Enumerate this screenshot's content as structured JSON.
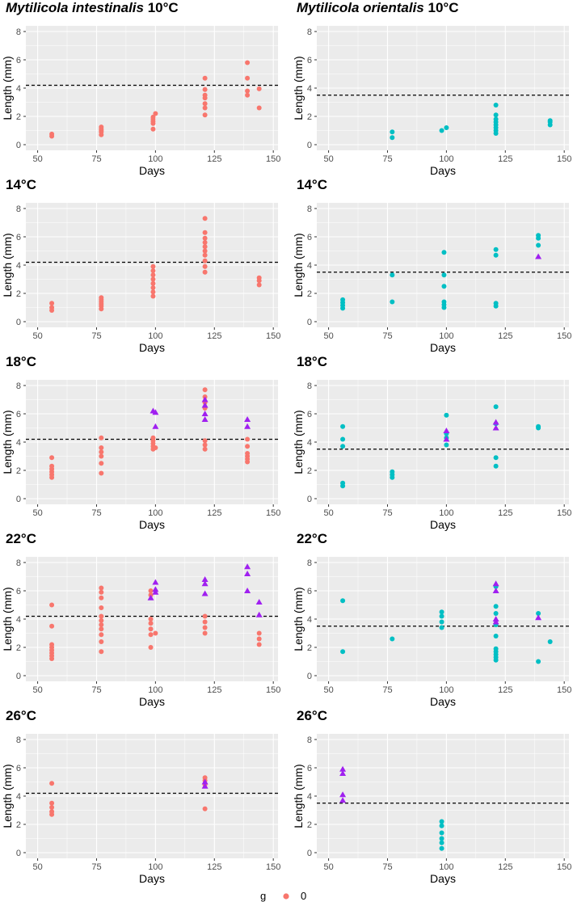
{
  "colors": {
    "panel_bg": "#ebebeb",
    "grid_major": "#ffffff",
    "intestinalis": "#f8766d",
    "orientalis": "#00bfc4",
    "gravid": "#a020f0",
    "threshold": "#000000"
  },
  "legend": {
    "title": "g",
    "label": "0"
  },
  "chart_data": [
    {
      "type": "scatter",
      "title_species": "Mytilicola intestinalis",
      "title_temp": "10°C",
      "species": "intestinalis",
      "xlabel": "Days",
      "ylabel": "Length (mm)",
      "xlim": [
        45,
        152
      ],
      "ylim": [
        -0.4,
        8.4
      ],
      "xticks": [
        50,
        75,
        100,
        125,
        150
      ],
      "yticks": [
        0,
        2,
        4,
        6,
        8
      ],
      "threshold": 4.2,
      "circles": [
        [
          56,
          0.6
        ],
        [
          56,
          0.75
        ],
        [
          77,
          0.7
        ],
        [
          77,
          0.9
        ],
        [
          77,
          1.0
        ],
        [
          77,
          1.1
        ],
        [
          77,
          1.25
        ],
        [
          99,
          1.1
        ],
        [
          99,
          1.5
        ],
        [
          99,
          1.65
        ],
        [
          99,
          1.8
        ],
        [
          99,
          1.95
        ],
        [
          100,
          2.2
        ],
        [
          121,
          2.1
        ],
        [
          121,
          2.6
        ],
        [
          121,
          2.9
        ],
        [
          121,
          3.3
        ],
        [
          121,
          3.5
        ],
        [
          121,
          3.9
        ],
        [
          121,
          4.7
        ],
        [
          139,
          3.5
        ],
        [
          139,
          3.8
        ],
        [
          139,
          4.7
        ],
        [
          139,
          5.8
        ],
        [
          144,
          2.6
        ],
        [
          144,
          3.95
        ]
      ],
      "triangles": []
    },
    {
      "type": "scatter",
      "title_species": "Mytilicola orientalis",
      "title_temp": "10°C",
      "species": "orientalis",
      "xlabel": "Days",
      "ylabel": "Length (mm)",
      "xlim": [
        45,
        152
      ],
      "ylim": [
        -0.4,
        8.4
      ],
      "xticks": [
        50,
        75,
        100,
        125,
        150
      ],
      "yticks": [
        0,
        2,
        4,
        6,
        8
      ],
      "threshold": 3.5,
      "circles": [
        [
          77,
          0.5
        ],
        [
          77,
          0.9
        ],
        [
          98,
          1.0
        ],
        [
          100,
          1.2
        ],
        [
          121,
          0.8
        ],
        [
          121,
          1.0
        ],
        [
          121,
          1.2
        ],
        [
          121,
          1.4
        ],
        [
          121,
          1.6
        ],
        [
          121,
          1.8
        ],
        [
          121,
          2.1
        ],
        [
          121,
          2.8
        ],
        [
          144,
          1.4
        ],
        [
          144,
          1.6
        ],
        [
          144,
          1.7
        ]
      ],
      "triangles": []
    },
    {
      "type": "scatter",
      "title_species": "",
      "title_temp": "14°C",
      "species": "intestinalis",
      "xlabel": "Days",
      "ylabel": "Length (mm)",
      "xlim": [
        45,
        152
      ],
      "ylim": [
        -0.4,
        8.4
      ],
      "xticks": [
        50,
        75,
        100,
        125,
        150
      ],
      "yticks": [
        0,
        2,
        4,
        6,
        8
      ],
      "threshold": 4.2,
      "circles": [
        [
          56,
          0.8
        ],
        [
          56,
          1.0
        ],
        [
          56,
          1.3
        ],
        [
          77,
          0.9
        ],
        [
          77,
          1.1
        ],
        [
          77,
          1.25
        ],
        [
          77,
          1.4
        ],
        [
          77,
          1.55
        ],
        [
          77,
          1.7
        ],
        [
          99,
          1.8
        ],
        [
          99,
          2.1
        ],
        [
          99,
          2.4
        ],
        [
          99,
          2.7
        ],
        [
          99,
          3.0
        ],
        [
          99,
          3.3
        ],
        [
          99,
          3.6
        ],
        [
          99,
          3.9
        ],
        [
          121,
          3.5
        ],
        [
          121,
          3.9
        ],
        [
          121,
          4.3
        ],
        [
          121,
          4.7
        ],
        [
          121,
          5.0
        ],
        [
          121,
          5.3
        ],
        [
          121,
          5.6
        ],
        [
          121,
          5.9
        ],
        [
          121,
          6.3
        ],
        [
          121,
          7.3
        ],
        [
          144,
          2.6
        ],
        [
          144,
          2.9
        ],
        [
          144,
          3.1
        ]
      ],
      "triangles": []
    },
    {
      "type": "scatter",
      "title_species": "",
      "title_temp": "14°C",
      "species": "orientalis",
      "xlabel": "Days",
      "ylabel": "Length (mm)",
      "xlim": [
        45,
        152
      ],
      "ylim": [
        -0.4,
        8.4
      ],
      "xticks": [
        50,
        75,
        100,
        125,
        150
      ],
      "yticks": [
        0,
        2,
        4,
        6,
        8
      ],
      "threshold": 3.5,
      "circles": [
        [
          56,
          0.95
        ],
        [
          56,
          1.15
        ],
        [
          56,
          1.35
        ],
        [
          56,
          1.55
        ],
        [
          77,
          1.4
        ],
        [
          77,
          3.3
        ],
        [
          99,
          1.0
        ],
        [
          99,
          1.2
        ],
        [
          99,
          1.4
        ],
        [
          99,
          2.5
        ],
        [
          99,
          3.3
        ],
        [
          99,
          4.9
        ],
        [
          121,
          1.1
        ],
        [
          121,
          1.3
        ],
        [
          121,
          4.7
        ],
        [
          121,
          5.1
        ],
        [
          139,
          5.4
        ],
        [
          139,
          5.9
        ],
        [
          139,
          6.1
        ]
      ],
      "triangles": [
        [
          139,
          4.6
        ]
      ]
    },
    {
      "type": "scatter",
      "title_species": "",
      "title_temp": "18°C",
      "species": "intestinalis",
      "xlabel": "Days",
      "ylabel": "Length (mm)",
      "xlim": [
        45,
        152
      ],
      "ylim": [
        -0.4,
        8.4
      ],
      "xticks": [
        50,
        75,
        100,
        125,
        150
      ],
      "yticks": [
        0,
        2,
        4,
        6,
        8
      ],
      "threshold": 4.2,
      "circles": [
        [
          56,
          1.5
        ],
        [
          56,
          1.7
        ],
        [
          56,
          1.9
        ],
        [
          56,
          2.1
        ],
        [
          56,
          2.3
        ],
        [
          56,
          2.9
        ],
        [
          77,
          1.8
        ],
        [
          77,
          2.5
        ],
        [
          77,
          3.0
        ],
        [
          77,
          3.3
        ],
        [
          77,
          3.6
        ],
        [
          77,
          4.3
        ],
        [
          99,
          3.5
        ],
        [
          99,
          3.7
        ],
        [
          99,
          3.9
        ],
        [
          99,
          4.1
        ],
        [
          99,
          4.3
        ],
        [
          100,
          3.6
        ],
        [
          121,
          3.5
        ],
        [
          121,
          3.8
        ],
        [
          121,
          4.1
        ],
        [
          121,
          6.4
        ],
        [
          121,
          6.8
        ],
        [
          121,
          7.2
        ],
        [
          121,
          7.7
        ],
        [
          139,
          2.6
        ],
        [
          139,
          2.8
        ],
        [
          139,
          3.0
        ],
        [
          139,
          3.2
        ],
        [
          139,
          3.7
        ],
        [
          139,
          4.2
        ]
      ],
      "triangles": [
        [
          99,
          6.2
        ],
        [
          100,
          5.1
        ],
        [
          100,
          6.1
        ],
        [
          121,
          5.6
        ],
        [
          121,
          6.0
        ],
        [
          121,
          6.6
        ],
        [
          121,
          7.0
        ],
        [
          139,
          5.1
        ],
        [
          139,
          5.6
        ]
      ]
    },
    {
      "type": "scatter",
      "title_species": "",
      "title_temp": "18°C",
      "species": "orientalis",
      "xlabel": "Days",
      "ylabel": "Length (mm)",
      "xlim": [
        45,
        152
      ],
      "ylim": [
        -0.4,
        8.4
      ],
      "xticks": [
        50,
        75,
        100,
        125,
        150
      ],
      "yticks": [
        0,
        2,
        4,
        6,
        8
      ],
      "threshold": 3.5,
      "circles": [
        [
          56,
          0.9
        ],
        [
          56,
          1.1
        ],
        [
          56,
          3.7
        ],
        [
          56,
          4.2
        ],
        [
          56,
          5.1
        ],
        [
          77,
          1.5
        ],
        [
          77,
          1.7
        ],
        [
          77,
          1.9
        ],
        [
          100,
          3.8
        ],
        [
          100,
          4.3
        ],
        [
          100,
          4.6
        ],
        [
          100,
          5.9
        ],
        [
          121,
          2.3
        ],
        [
          121,
          2.9
        ],
        [
          121,
          5.3
        ],
        [
          121,
          6.5
        ],
        [
          139,
          5.0
        ],
        [
          139,
          5.1
        ]
      ],
      "triangles": [
        [
          100,
          4.2
        ],
        [
          100,
          4.8
        ],
        [
          121,
          5.0
        ],
        [
          121,
          5.4
        ]
      ]
    },
    {
      "type": "scatter",
      "title_species": "",
      "title_temp": "22°C",
      "species": "intestinalis",
      "xlabel": "Days",
      "ylabel": "Length (mm)",
      "xlim": [
        45,
        152
      ],
      "ylim": [
        -0.4,
        8.4
      ],
      "xticks": [
        50,
        75,
        100,
        125,
        150
      ],
      "yticks": [
        0,
        2,
        4,
        6,
        8
      ],
      "threshold": 4.2,
      "circles": [
        [
          56,
          1.2
        ],
        [
          56,
          1.4
        ],
        [
          56,
          1.6
        ],
        [
          56,
          1.8
        ],
        [
          56,
          2.0
        ],
        [
          56,
          2.2
        ],
        [
          56,
          3.5
        ],
        [
          56,
          5.0
        ],
        [
          77,
          1.7
        ],
        [
          77,
          2.4
        ],
        [
          77,
          2.9
        ],
        [
          77,
          3.3
        ],
        [
          77,
          3.6
        ],
        [
          77,
          3.9
        ],
        [
          77,
          4.2
        ],
        [
          77,
          4.8
        ],
        [
          77,
          5.5
        ],
        [
          77,
          5.9
        ],
        [
          77,
          6.2
        ],
        [
          98,
          2.0
        ],
        [
          98,
          2.9
        ],
        [
          98,
          3.3
        ],
        [
          98,
          3.7
        ],
        [
          98,
          4.0
        ],
        [
          98,
          5.7
        ],
        [
          98,
          6.0
        ],
        [
          100,
          3.0
        ],
        [
          121,
          3.0
        ],
        [
          121,
          3.4
        ],
        [
          121,
          3.8
        ],
        [
          121,
          4.2
        ],
        [
          144,
          2.2
        ],
        [
          144,
          2.6
        ],
        [
          144,
          3.0
        ]
      ],
      "triangles": [
        [
          98,
          5.5
        ],
        [
          100,
          5.9
        ],
        [
          100,
          6.1
        ],
        [
          100,
          6.6
        ],
        [
          121,
          5.8
        ],
        [
          121,
          6.5
        ],
        [
          121,
          6.8
        ],
        [
          139,
          6.0
        ],
        [
          139,
          7.2
        ],
        [
          139,
          7.7
        ],
        [
          144,
          4.3
        ],
        [
          144,
          5.2
        ]
      ]
    },
    {
      "type": "scatter",
      "title_species": "",
      "title_temp": "22°C",
      "species": "orientalis",
      "xlabel": "Days",
      "ylabel": "Length (mm)",
      "xlim": [
        45,
        152
      ],
      "ylim": [
        -0.4,
        8.4
      ],
      "xticks": [
        50,
        75,
        100,
        125,
        150
      ],
      "yticks": [
        0,
        2,
        4,
        6,
        8
      ],
      "threshold": 3.5,
      "circles": [
        [
          56,
          1.7
        ],
        [
          56,
          5.3
        ],
        [
          77,
          2.6
        ],
        [
          98,
          3.4
        ],
        [
          98,
          3.8
        ],
        [
          98,
          4.2
        ],
        [
          98,
          4.5
        ],
        [
          121,
          1.1
        ],
        [
          121,
          1.3
        ],
        [
          121,
          1.5
        ],
        [
          121,
          1.7
        ],
        [
          121,
          1.9
        ],
        [
          121,
          2.8
        ],
        [
          121,
          3.6
        ],
        [
          121,
          4.4
        ],
        [
          121,
          4.9
        ],
        [
          121,
          6.3
        ],
        [
          139,
          1.0
        ],
        [
          139,
          4.4
        ],
        [
          144,
          2.4
        ]
      ],
      "triangles": [
        [
          121,
          3.8
        ],
        [
          121,
          4.0
        ],
        [
          121,
          6.0
        ],
        [
          121,
          6.5
        ],
        [
          139,
          4.1
        ]
      ]
    },
    {
      "type": "scatter",
      "title_species": "",
      "title_temp": "26°C",
      "species": "intestinalis",
      "xlabel": "Days",
      "ylabel": "Length (mm)",
      "xlim": [
        45,
        152
      ],
      "ylim": [
        -0.4,
        8.4
      ],
      "xticks": [
        50,
        75,
        100,
        125,
        150
      ],
      "yticks": [
        0,
        2,
        4,
        6,
        8
      ],
      "threshold": 4.2,
      "circles": [
        [
          56,
          2.7
        ],
        [
          56,
          2.9
        ],
        [
          56,
          3.2
        ],
        [
          56,
          3.5
        ],
        [
          56,
          4.9
        ],
        [
          121,
          3.1
        ],
        [
          121,
          4.8
        ],
        [
          121,
          5.1
        ],
        [
          121,
          5.3
        ]
      ],
      "triangles": [
        [
          121,
          4.7
        ],
        [
          121,
          5.0
        ]
      ]
    },
    {
      "type": "scatter",
      "title_species": "",
      "title_temp": "26°C",
      "species": "orientalis",
      "xlabel": "Days",
      "ylabel": "Length (mm)",
      "xlim": [
        45,
        152
      ],
      "ylim": [
        -0.4,
        8.4
      ],
      "xticks": [
        50,
        75,
        100,
        125,
        150
      ],
      "yticks": [
        0,
        2,
        4,
        6,
        8
      ],
      "threshold": 3.5,
      "circles": [
        [
          98,
          0.3
        ],
        [
          98,
          0.7
        ],
        [
          98,
          1.0
        ],
        [
          98,
          1.4
        ],
        [
          98,
          1.9
        ],
        [
          98,
          2.2
        ]
      ],
      "triangles": [
        [
          56,
          3.7
        ],
        [
          56,
          4.1
        ],
        [
          56,
          5.6
        ],
        [
          56,
          5.9
        ]
      ]
    }
  ]
}
